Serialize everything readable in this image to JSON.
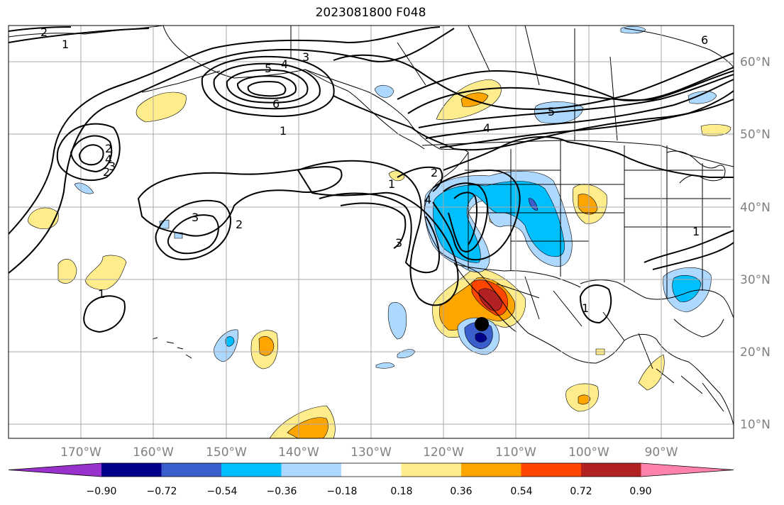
{
  "title": "2023081800 F048",
  "map": {
    "lon_labels": [
      "170°W",
      "160°W",
      "150°W",
      "140°W",
      "130°W",
      "120°W",
      "110°W",
      "100°W",
      "90°W"
    ],
    "lat_labels": [
      "60°N",
      "50°N",
      "40°N",
      "30°N",
      "20°N",
      "10°N"
    ],
    "grid": true,
    "contour_labels": [
      "2",
      "1",
      "5",
      "4",
      "3",
      "6",
      "1",
      "2",
      "2",
      "4",
      "3",
      "3",
      "2",
      "1",
      "2",
      "4",
      "3",
      "1",
      "1",
      "6",
      "5",
      "4",
      "1"
    ]
  },
  "colorbar": {
    "ticks": [
      "−0.90",
      "−0.72",
      "−0.54",
      "−0.36",
      "−0.18",
      "0.18",
      "0.36",
      "0.54",
      "0.72",
      "0.90"
    ],
    "colors": [
      "#9932cc",
      "#00008b",
      "#3a5fcd",
      "#00bfff",
      "#add8ff",
      "#ffffff",
      "#ffec8b",
      "#ffa500",
      "#ff4500",
      "#b22222",
      "#ff82ab"
    ]
  },
  "marker": {
    "label": "storm-center",
    "color": "#000000"
  }
}
